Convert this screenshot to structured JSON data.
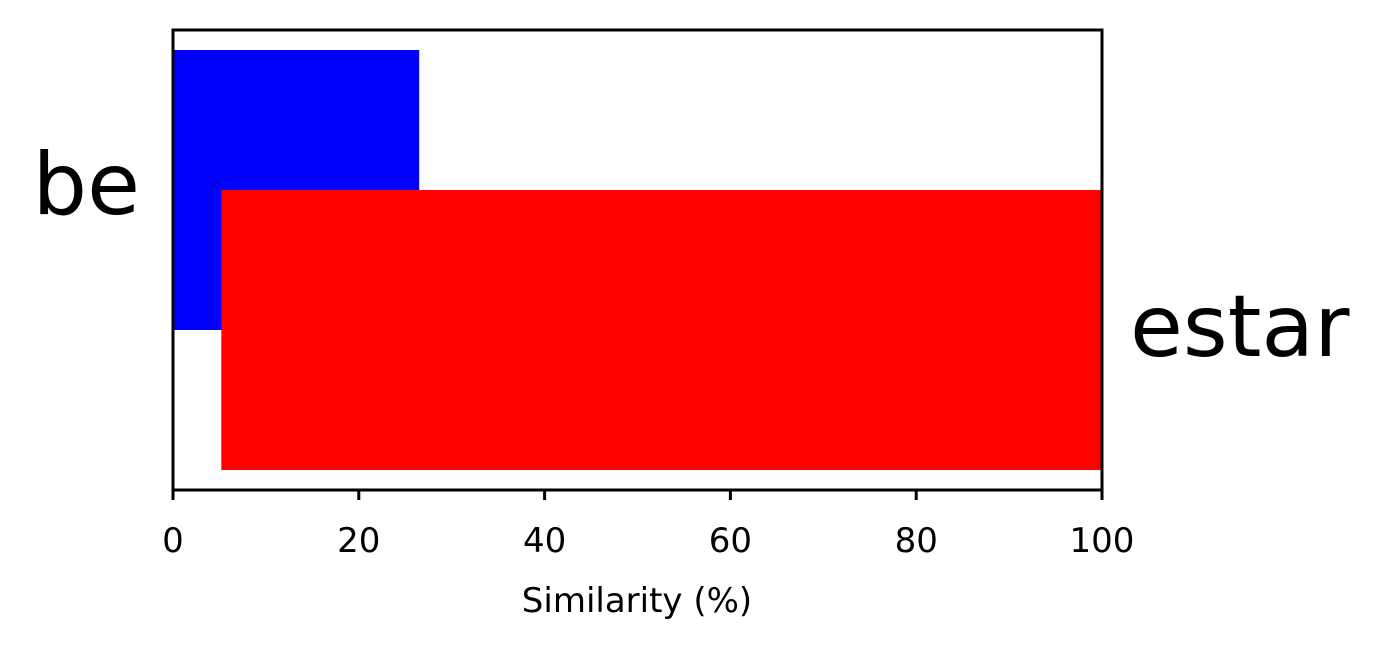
{
  "chart_data": {
    "type": "bar",
    "orientation": "horizontal",
    "xlabel": "Similarity (%)",
    "xlim": [
      0,
      100
    ],
    "xticks": [
      0,
      20,
      40,
      60,
      80,
      100
    ],
    "grid": false,
    "bars": [
      {
        "label": "be",
        "start": 0,
        "end": 26.5,
        "color": "#0000ff"
      },
      {
        "label": "estar",
        "start": 5.2,
        "end": 100,
        "color": "#ff0000"
      }
    ]
  }
}
